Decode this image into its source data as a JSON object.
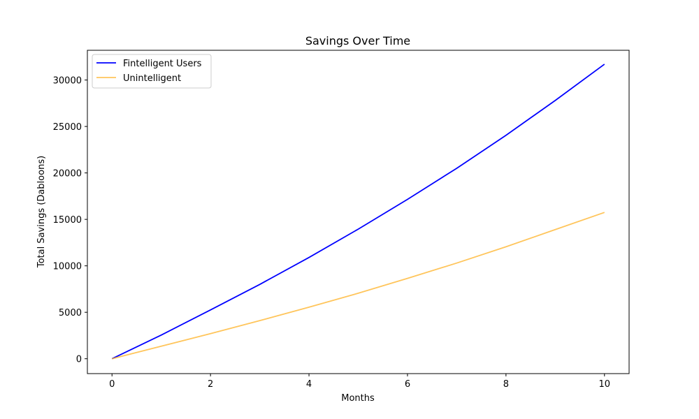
{
  "chart_data": {
    "type": "line",
    "title": "Savings Over Time",
    "xlabel": "Months",
    "ylabel": "Total Savings (Dabloons)",
    "xlim": [
      -0.5,
      10.5
    ],
    "ylim": [
      -1600,
      33200
    ],
    "xticks": [
      0,
      2,
      4,
      6,
      8,
      10
    ],
    "yticks": [
      0,
      5000,
      10000,
      15000,
      20000,
      25000,
      30000
    ],
    "grid": false,
    "legend_position": "upper-left",
    "x": [
      0,
      1,
      2,
      3,
      4,
      5,
      6,
      7,
      8,
      9,
      10
    ],
    "series": [
      {
        "name": "Fintelligent Users",
        "color": "#0000ff",
        "values": [
          0,
          2550,
          5250,
          8000,
          10900,
          13950,
          17150,
          20500,
          24050,
          27800,
          31700
        ]
      },
      {
        "name": "Unintelligent",
        "color": "#ffb732",
        "values": [
          0,
          1350,
          2700,
          4100,
          5550,
          7050,
          8650,
          10300,
          12050,
          13900,
          15750
        ]
      }
    ]
  }
}
